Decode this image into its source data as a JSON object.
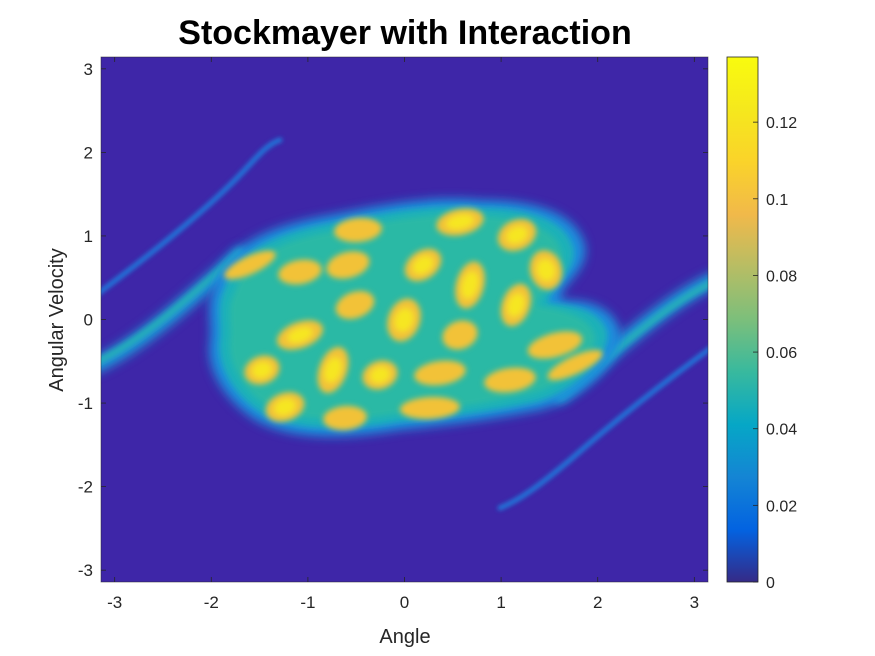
{
  "chart_data": {
    "type": "heatmap",
    "title": "Stockmayer with Interaction",
    "xlabel": "Angle",
    "ylabel": "Angular Velocity",
    "xlim": [
      -3.14159,
      3.14159
    ],
    "ylim": [
      -3.14159,
      3.14159
    ],
    "xticks": [
      -3,
      -2,
      -1,
      0,
      1,
      2,
      3
    ],
    "yticks": [
      3,
      2,
      1,
      0,
      -1,
      -2,
      -3
    ],
    "colorbar": {
      "range": [
        0,
        0.137
      ],
      "ticks": [
        0,
        0.02,
        0.04,
        0.06,
        0.08,
        0.1,
        0.12
      ],
      "tick_labels": [
        "0",
        "0.02",
        "0.04",
        "0.06",
        "0.08",
        "0.1",
        "0.12"
      ],
      "colormap": "parula"
    },
    "grid": false,
    "peaks": [
      {
        "x": 0.55,
        "y": 1.15,
        "value": 0.13
      },
      {
        "x": 1.15,
        "y": 1.0,
        "value": 0.13
      },
      {
        "x": 0.2,
        "y": 0.7,
        "value": 0.13
      },
      {
        "x": 1.45,
        "y": 0.6,
        "value": 0.13
      },
      {
        "x": 0.7,
        "y": 0.45,
        "value": 0.13
      },
      {
        "x": 1.15,
        "y": 0.2,
        "value": 0.13
      },
      {
        "x": 0.0,
        "y": 0.0,
        "value": 0.13
      },
      {
        "x": 0.6,
        "y": -0.05,
        "value": 0.13
      },
      {
        "x": 1.35,
        "y": -0.25,
        "value": 0.13
      },
      {
        "x": -0.45,
        "y": 1.1,
        "value": 0.12
      },
      {
        "x": -0.6,
        "y": 0.6,
        "value": 0.13
      },
      {
        "x": -1.0,
        "y": 0.35,
        "value": 0.13
      },
      {
        "x": -0.5,
        "y": 0.15,
        "value": 0.13
      },
      {
        "x": -1.45,
        "y": 0.0,
        "value": 0.13
      },
      {
        "x": -0.95,
        "y": -0.25,
        "value": 0.13
      },
      {
        "x": -0.35,
        "y": -0.35,
        "value": 0.13
      },
      {
        "x": 0.2,
        "y": -0.5,
        "value": 0.13
      },
      {
        "x": 0.9,
        "y": -0.55,
        "value": 0.13
      },
      {
        "x": -1.55,
        "y": -0.55,
        "value": 0.13
      },
      {
        "x": -0.85,
        "y": -0.7,
        "value": 0.13
      },
      {
        "x": -0.2,
        "y": -0.85,
        "value": 0.13
      },
      {
        "x": 0.5,
        "y": -1.0,
        "value": 0.12
      },
      {
        "x": -1.25,
        "y": -1.05,
        "value": 0.13
      },
      {
        "x": -0.55,
        "y": -1.15,
        "value": 0.12
      },
      {
        "x": -1.3,
        "y": 0.7,
        "value": 0.12
      }
    ]
  }
}
